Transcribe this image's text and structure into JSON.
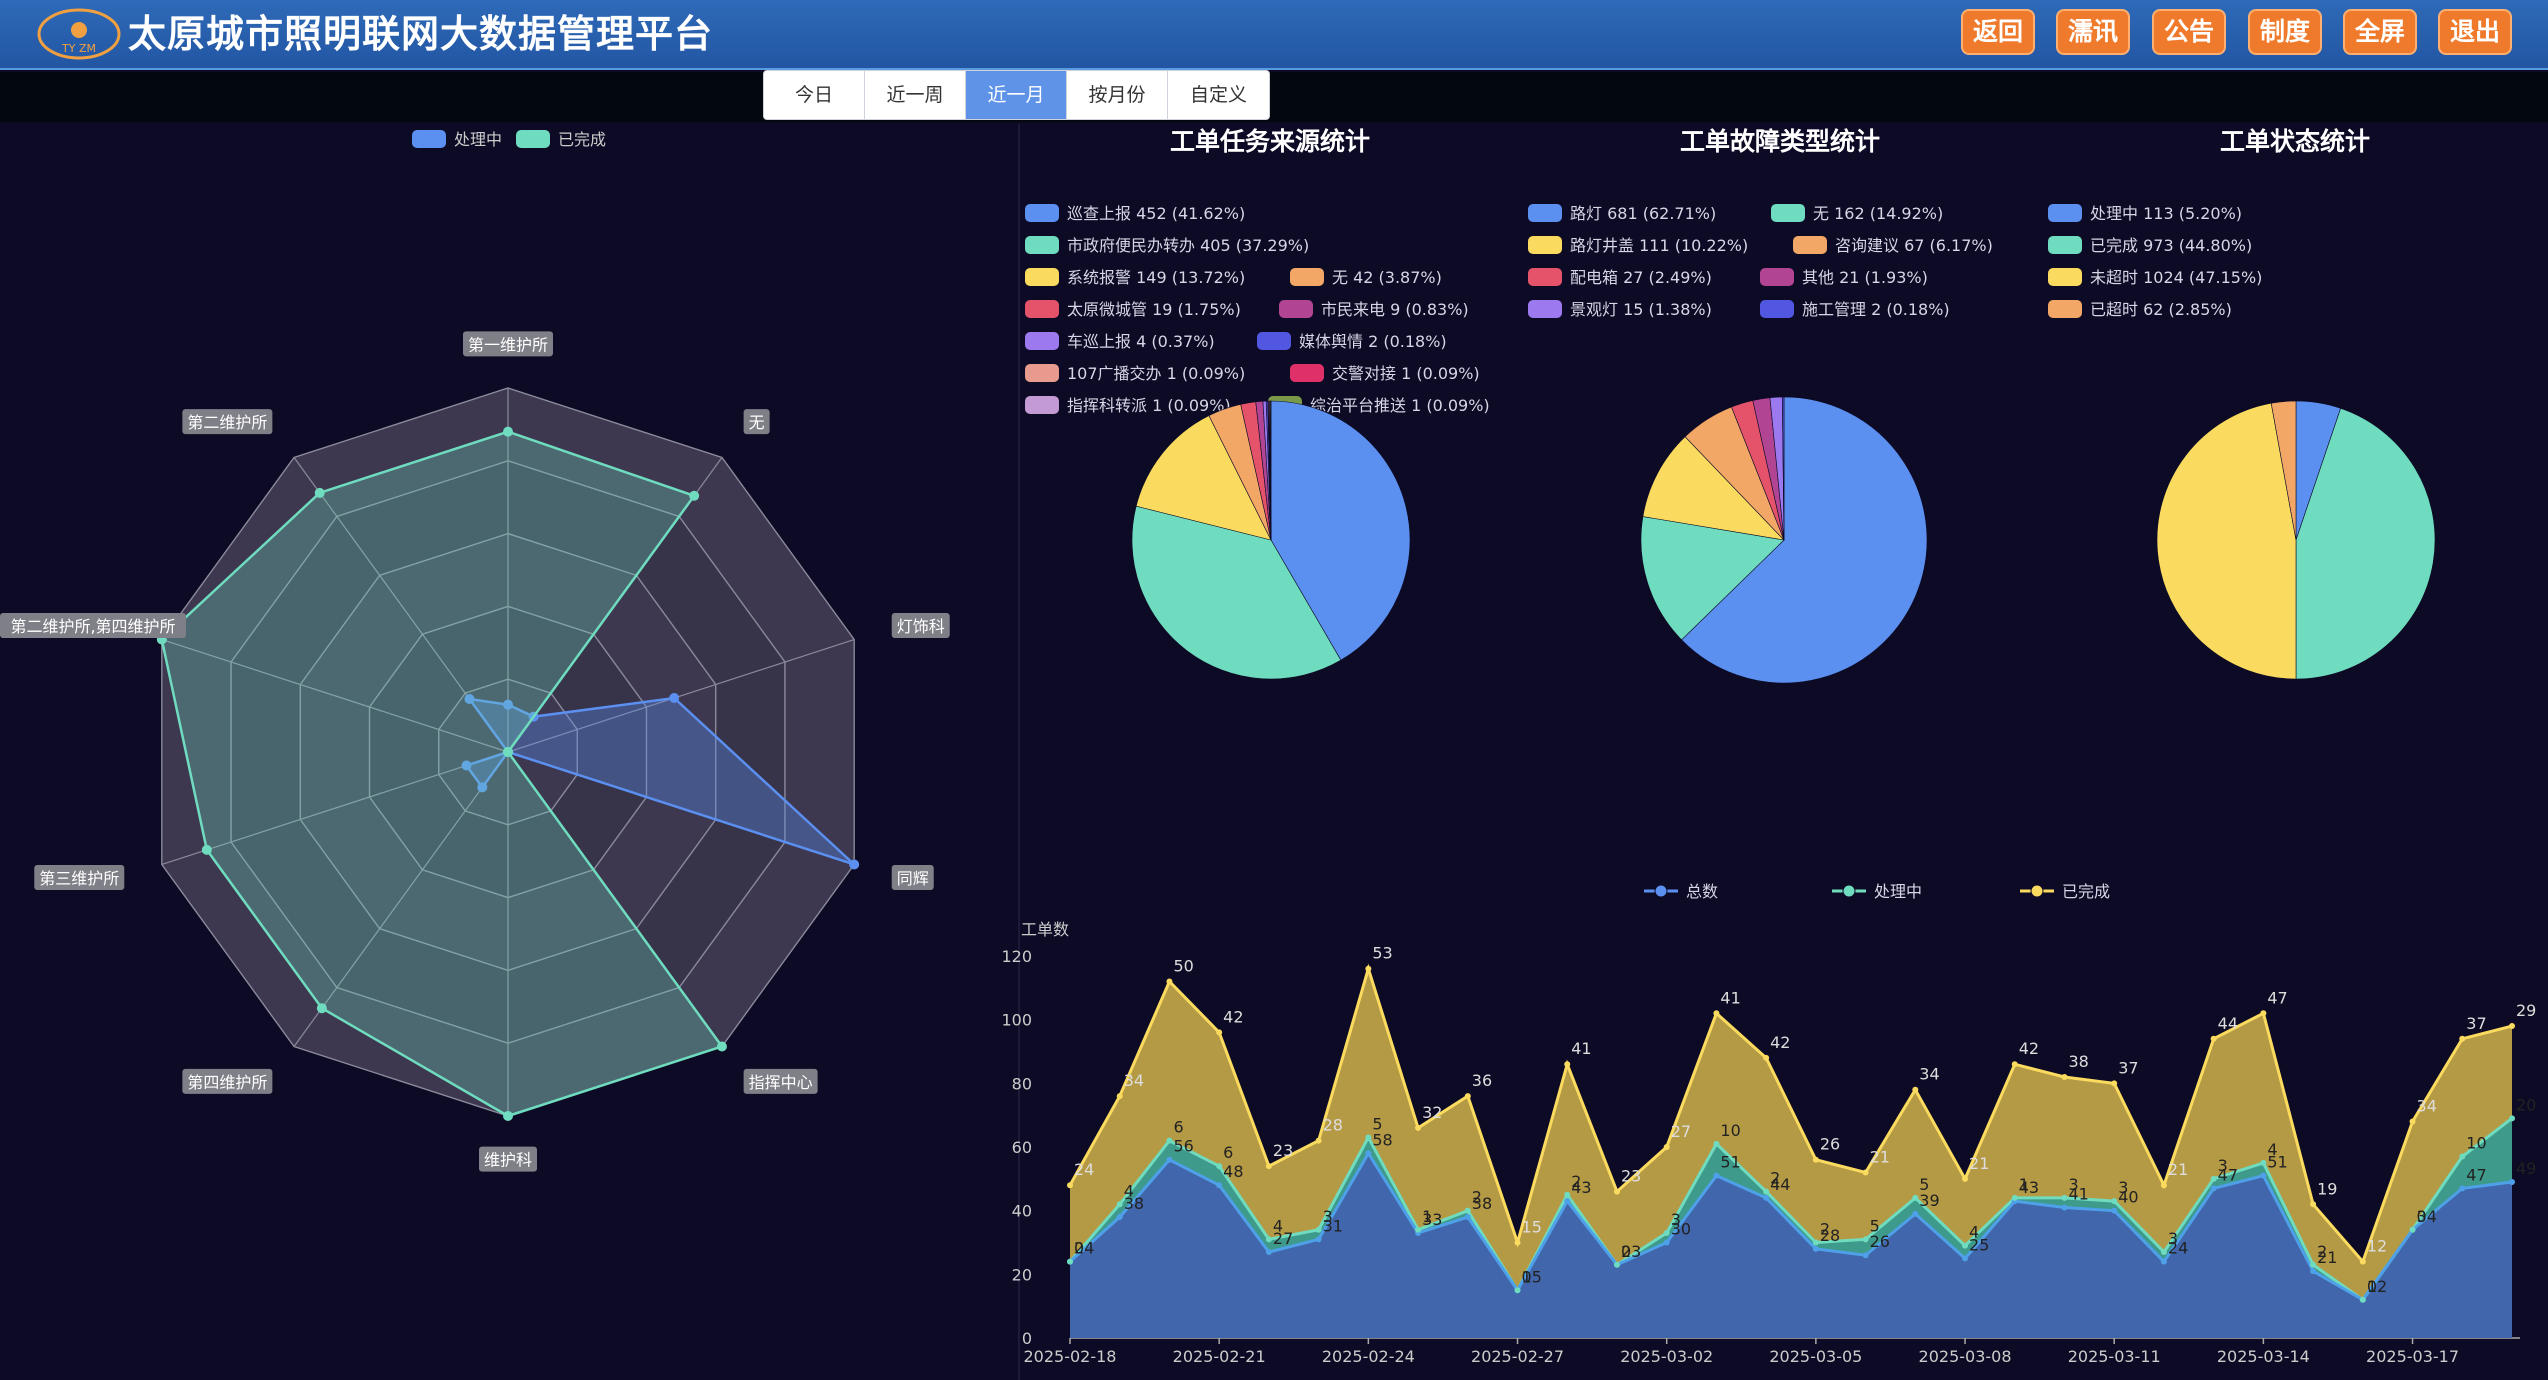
{
  "header": {
    "title": "太原城市照明联网大数据管理平台",
    "logo_text": "TY ZM",
    "buttons": [
      "返回",
      "濡讯",
      "公告",
      "制度",
      "全屏",
      "退出"
    ]
  },
  "date_tabs": {
    "items": [
      "今日",
      "近一周",
      "近一月",
      "按月份",
      "自定义"
    ],
    "active_index": 2
  },
  "colors": {
    "blue": "#5b8ff0",
    "green": "#6fdcbf",
    "yellow": "#fadb5f",
    "orange": "#f2a766",
    "red": "#e5536b",
    "magenta": "#b14493",
    "purple": "#9d79f0",
    "indigo": "#5157e0",
    "salmon": "#e89a8f",
    "crimson": "#e0306a",
    "lilac": "#c49ad4",
    "olive": "#7a9a4a"
  },
  "chart_data": [
    {
      "id": "radar",
      "type": "radar",
      "legend": [
        "处理中",
        "已完成"
      ],
      "indicators": [
        "第一维护所",
        "无",
        "灯饰科",
        "同辉",
        "指挥中心",
        "维护科",
        "第四维护所",
        "第三维护所",
        "第二维护所,第四维护所",
        "第二维护所"
      ],
      "series": [
        {
          "name": "处理中",
          "values": [
            0.13,
            0.12,
            0.48,
            1.0,
            0.0,
            0.0,
            0.12,
            0.12,
            0.0,
            0.18
          ]
        },
        {
          "name": "已完成",
          "values": [
            0.88,
            0.87,
            0.0,
            0.0,
            1.0,
            1.0,
            0.87,
            0.87,
            1.0,
            0.88
          ]
        }
      ]
    },
    {
      "id": "pie-source",
      "type": "pie",
      "title": "工单任务来源统计",
      "slices": [
        {
          "name": "巡查上报",
          "value": 452,
          "pct": "41.62%",
          "color": "#5b8ff0"
        },
        {
          "name": "市政府便民办转办",
          "value": 405,
          "pct": "37.29%",
          "color": "#6fdcbf"
        },
        {
          "name": "系统报警",
          "value": 149,
          "pct": "13.72%",
          "color": "#fadb5f"
        },
        {
          "name": "无",
          "value": 42,
          "pct": "3.87%",
          "color": "#f2a766"
        },
        {
          "name": "太原微城管",
          "value": 19,
          "pct": "1.75%",
          "color": "#e5536b"
        },
        {
          "name": "市民来电",
          "value": 9,
          "pct": "0.83%",
          "color": "#b14493"
        },
        {
          "name": "车巡上报",
          "value": 4,
          "pct": "0.37%",
          "color": "#9d79f0"
        },
        {
          "name": "媒体舆情",
          "value": 2,
          "pct": "0.18%",
          "color": "#5157e0"
        },
        {
          "name": "107广播交办",
          "value": 1,
          "pct": "0.09%",
          "color": "#e89a8f"
        },
        {
          "name": "交警对接",
          "value": 1,
          "pct": "0.09%",
          "color": "#e0306a"
        },
        {
          "name": "指挥科转派",
          "value": 1,
          "pct": "0.09%",
          "color": "#c49ad4"
        },
        {
          "name": "综治平台推送",
          "value": 1,
          "pct": "0.09%",
          "color": "#7a9a4a"
        }
      ]
    },
    {
      "id": "pie-fault",
      "type": "pie",
      "title": "工单故障类型统计",
      "slices": [
        {
          "name": "路灯",
          "value": 681,
          "pct": "62.71%",
          "color": "#5b8ff0"
        },
        {
          "name": "无",
          "value": 162,
          "pct": "14.92%",
          "color": "#6fdcbf"
        },
        {
          "name": "路灯井盖",
          "value": 111,
          "pct": "10.22%",
          "color": "#fadb5f"
        },
        {
          "name": "咨询建议",
          "value": 67,
          "pct": "6.17%",
          "color": "#f2a766"
        },
        {
          "name": "配电箱",
          "value": 27,
          "pct": "2.49%",
          "color": "#e5536b"
        },
        {
          "name": "其他",
          "value": 21,
          "pct": "1.93%",
          "color": "#b14493"
        },
        {
          "name": "景观灯",
          "value": 15,
          "pct": "1.38%",
          "color": "#9d79f0"
        },
        {
          "name": "施工管理",
          "value": 2,
          "pct": "0.18%",
          "color": "#5157e0"
        }
      ]
    },
    {
      "id": "pie-status",
      "type": "pie",
      "title": "工单状态统计",
      "slices": [
        {
          "name": "处理中",
          "value": 113,
          "pct": "5.20%",
          "color": "#5b8ff0"
        },
        {
          "name": "已完成",
          "value": 973,
          "pct": "44.80%",
          "color": "#6fdcbf"
        },
        {
          "name": "未超时",
          "value": 1024,
          "pct": "47.15%",
          "color": "#fadb5f"
        },
        {
          "name": "已超时",
          "value": 62,
          "pct": "2.85%",
          "color": "#f2a766"
        }
      ]
    },
    {
      "id": "area-trend",
      "type": "area",
      "ylabel": "工单数",
      "legend": [
        "总数",
        "处理中",
        "已完成"
      ],
      "ylim": [
        0,
        120
      ],
      "y_ticks": [
        "0",
        "20",
        "40",
        "60",
        "80",
        "100",
        "120"
      ],
      "x": [
        "2025-02-18",
        "2025-02-19",
        "2025-02-20",
        "2025-02-21",
        "2025-02-22",
        "2025-02-23",
        "2025-02-24",
        "2025-02-25",
        "2025-02-26",
        "2025-02-27",
        "2025-02-28",
        "2025-03-01",
        "2025-03-02",
        "2025-03-03",
        "2025-03-04",
        "2025-03-05",
        "2025-03-06",
        "2025-03-07",
        "2025-03-08",
        "2025-03-09",
        "2025-03-10",
        "2025-03-11",
        "2025-03-12",
        "2025-03-13",
        "2025-03-14",
        "2025-03-15",
        "2025-03-16",
        "2025-03-17",
        "2025-03-18",
        "2025-03-19"
      ],
      "x_tick_labels": [
        "2025-02-18",
        "2025-02-21",
        "2025-02-24",
        "2025-02-27",
        "2025-03-02",
        "2025-03-05",
        "2025-03-08",
        "2025-03-11",
        "2025-03-14",
        "2025-03-17"
      ],
      "series": [
        {
          "name": "总数",
          "values": [
            24,
            38,
            56,
            48,
            27,
            31,
            58,
            33,
            38,
            15,
            43,
            23,
            30,
            51,
            44,
            28,
            26,
            39,
            25,
            43,
            41,
            40,
            24,
            47,
            51,
            21,
            12,
            34,
            47,
            49
          ]
        },
        {
          "name": "处理中",
          "values": [
            0,
            4,
            6,
            6,
            4,
            3,
            5,
            1,
            2,
            0,
            2,
            0,
            3,
            10,
            2,
            2,
            5,
            5,
            4,
            1,
            3,
            3,
            3,
            3,
            4,
            2,
            0,
            0,
            10,
            20
          ]
        },
        {
          "name": "已完成",
          "values": [
            24,
            34,
            50,
            42,
            23,
            28,
            53,
            32,
            36,
            15,
            41,
            23,
            27,
            41,
            42,
            26,
            21,
            34,
            21,
            42,
            38,
            37,
            21,
            44,
            47,
            19,
            12,
            34,
            37,
            29
          ]
        }
      ]
    }
  ]
}
